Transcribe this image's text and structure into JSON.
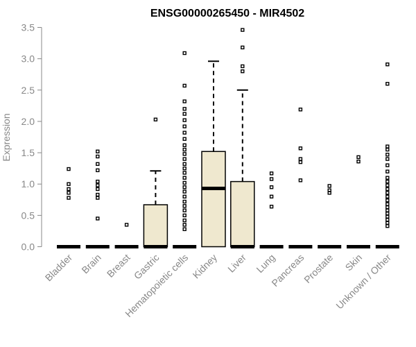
{
  "chart_data": {
    "type": "box",
    "title": "ENSG00000265450 - MIR4502",
    "ylabel": "Expression",
    "xlabel": "",
    "ylim": [
      0,
      3.5
    ],
    "yticks": [
      "0.0",
      "0.5",
      "1.0",
      "1.5",
      "2.0",
      "2.5",
      "3.0",
      "3.5"
    ],
    "colors": {
      "box_fill": "#efe8cf",
      "median": "#000000",
      "axis": "#888888"
    },
    "categories": [
      "Bladder",
      "Brain",
      "Breast",
      "Gastric",
      "Hematopoietic cells",
      "Kidney",
      "Liver",
      "Lung",
      "Pancreas",
      "Prostate",
      "Skin",
      "Unknown / Other"
    ],
    "boxes": [
      {
        "q1": 0,
        "median": 0,
        "q3": 0,
        "whisker_low": 0,
        "whisker_high": 0,
        "outliers": [
          0.78,
          0.86,
          0.92,
          1.0,
          1.24
        ]
      },
      {
        "q1": 0,
        "median": 0,
        "q3": 0,
        "whisker_low": 0,
        "whisker_high": 0,
        "outliers": [
          0.45,
          0.78,
          0.83,
          0.92,
          0.98,
          1.04,
          1.22,
          1.32,
          1.44,
          1.52
        ]
      },
      {
        "q1": 0,
        "median": 0,
        "q3": 0,
        "whisker_low": 0,
        "whisker_high": 0,
        "outliers": [
          0.35
        ]
      },
      {
        "q1": 0,
        "median": 0,
        "q3": 0.67,
        "whisker_low": 0,
        "whisker_high": 1.21,
        "outliers": [
          2.03
        ]
      },
      {
        "q1": 0,
        "median": 0,
        "q3": 0,
        "whisker_low": 0,
        "whisker_high": 0,
        "outliers": [
          0.28,
          0.35,
          0.42,
          0.5,
          0.58,
          0.65,
          0.72,
          0.8,
          0.88,
          0.95,
          1.02,
          1.1,
          1.18,
          1.25,
          1.32,
          1.4,
          1.48,
          1.55,
          1.62,
          1.72,
          1.82,
          1.92,
          2.02,
          2.12,
          2.2,
          2.32,
          2.57,
          3.09
        ]
      },
      {
        "q1": 0,
        "median": 0.93,
        "q3": 1.52,
        "whisker_low": 0,
        "whisker_high": 2.96,
        "outliers": []
      },
      {
        "q1": 0,
        "median": 0,
        "q3": 1.04,
        "whisker_low": 0,
        "whisker_high": 2.5,
        "outliers": [
          2.8,
          2.88,
          3.18,
          3.46
        ]
      },
      {
        "q1": 0,
        "median": 0,
        "q3": 0,
        "whisker_low": 0,
        "whisker_high": 0,
        "outliers": [
          0.64,
          0.8,
          0.95,
          1.08,
          1.17
        ]
      },
      {
        "q1": 0,
        "median": 0,
        "q3": 0,
        "whisker_low": 0,
        "whisker_high": 0,
        "outliers": [
          1.06,
          1.35,
          1.4,
          1.57,
          2.19
        ]
      },
      {
        "q1": 0,
        "median": 0,
        "q3": 0,
        "whisker_low": 0,
        "whisker_high": 0,
        "outliers": [
          0.86,
          0.9,
          0.97
        ]
      },
      {
        "q1": 0,
        "median": 0,
        "q3": 0,
        "whisker_low": 0,
        "whisker_high": 0,
        "outliers": [
          1.36,
          1.43
        ]
      },
      {
        "q1": 0,
        "median": 0,
        "q3": 0,
        "whisker_low": 0,
        "whisker_high": 0,
        "outliers": [
          0.33,
          0.38,
          0.43,
          0.48,
          0.53,
          0.58,
          0.63,
          0.68,
          0.74,
          0.8,
          0.86,
          0.92,
          0.98,
          1.04,
          1.1,
          1.2,
          1.3,
          1.4,
          1.47,
          1.55,
          1.6,
          2.6,
          2.91
        ]
      }
    ]
  }
}
